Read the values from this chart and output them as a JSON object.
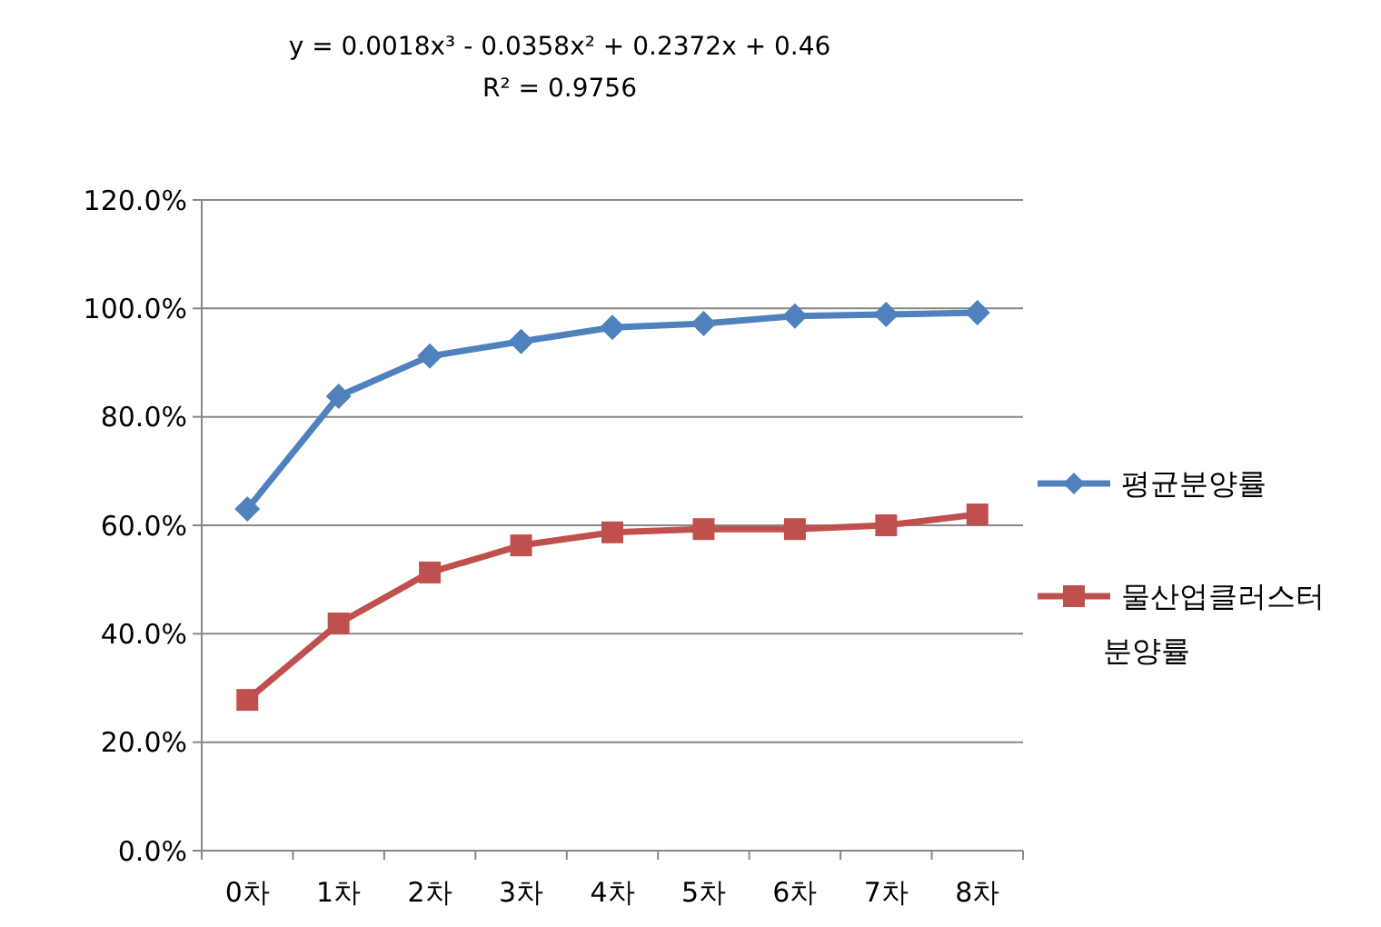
{
  "chart_data": {
    "type": "line",
    "title": "y = 0.0018x³ - 0.0358x² + 0.2372x + 0.46",
    "subtitle": "R² = 0.9756",
    "categories": [
      "0차",
      "1차",
      "2차",
      "3차",
      "4차",
      "5차",
      "6차",
      "7차",
      "8차"
    ],
    "series": [
      {
        "name": "평균분양률",
        "color": "#4f81bd",
        "marker": "diamond",
        "values": [
          63.0,
          83.8,
          91.2,
          93.9,
          96.5,
          97.2,
          98.6,
          98.9,
          99.2
        ]
      },
      {
        "name": "물산업클러스터 분양률",
        "color": "#c0504d",
        "marker": "square",
        "values": [
          27.8,
          41.9,
          51.3,
          56.3,
          58.7,
          59.3,
          59.3,
          60.0,
          62.0
        ]
      }
    ],
    "ylim": [
      0,
      120
    ],
    "yticks": [
      {
        "value": 0,
        "label": "0.0%"
      },
      {
        "value": 20,
        "label": "20.0%"
      },
      {
        "value": 40,
        "label": "40.0%"
      },
      {
        "value": 60,
        "label": "60.0%"
      },
      {
        "value": 80,
        "label": "80.0%"
      },
      {
        "value": 100,
        "label": "100.0%"
      },
      {
        "value": 120,
        "label": "120.0%"
      }
    ],
    "grid": "y",
    "legend": "right"
  }
}
